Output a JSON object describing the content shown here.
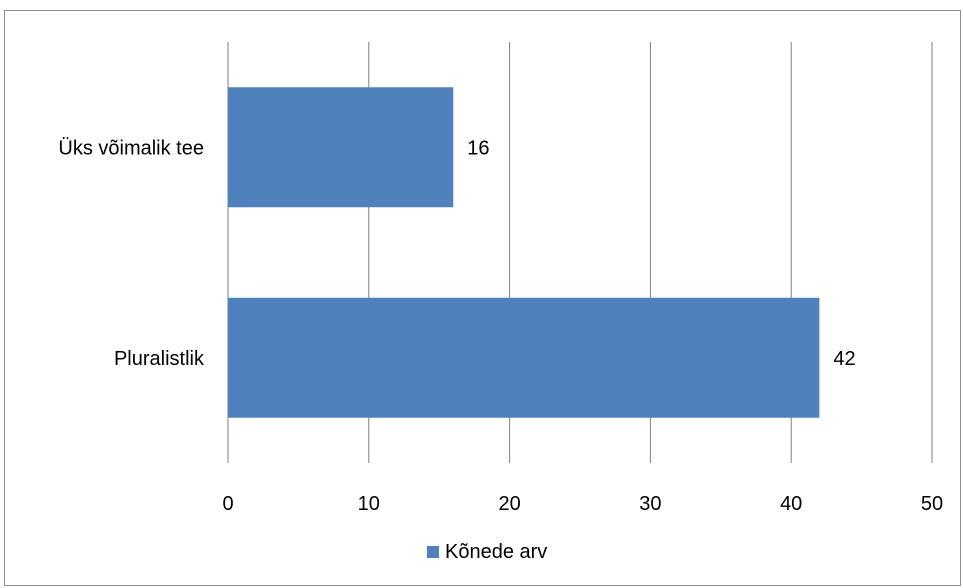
{
  "chart_data": {
    "type": "bar",
    "orientation": "horizontal",
    "categories": [
      "Üks võimalik tee",
      "Pluralistlik"
    ],
    "series": [
      {
        "name": "Kõnede arv",
        "values": [
          16,
          42
        ]
      }
    ],
    "data_labels": [
      "16",
      "42"
    ],
    "x_ticks": [
      "0",
      "10",
      "20",
      "30",
      "40",
      "50"
    ],
    "xlim": [
      0,
      50
    ],
    "grid": "vertical",
    "legend_position": "bottom",
    "bar_color": "#4f81bd",
    "grid_color": "#7f7f7f"
  }
}
